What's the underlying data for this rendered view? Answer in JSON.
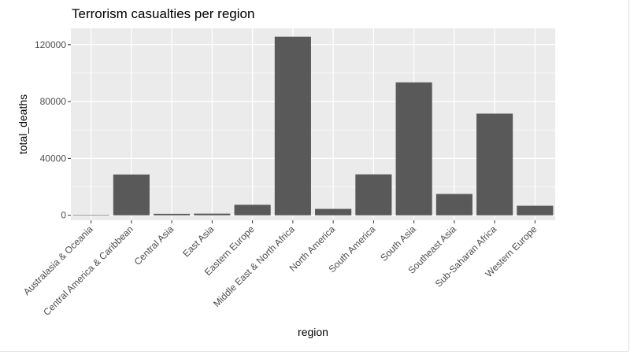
{
  "chart_data": {
    "type": "bar",
    "title": "Terrorism casualties per region",
    "xlabel": "region",
    "ylabel": "total_deaths",
    "categories": [
      "Australasia & Oceania",
      "Central America & Caribbean",
      "Central Asia",
      "East Asia",
      "Eastern Europe",
      "Middle East & North Africa",
      "North America",
      "South America",
      "South Asia",
      "Southeast Asia",
      "Sub-Saharan Africa",
      "Western Europe"
    ],
    "values": [
      150,
      28700,
      1000,
      1150,
      7400,
      125600,
      4500,
      28800,
      93500,
      15000,
      71500,
      6700
    ],
    "ylim": [
      -3500,
      131500
    ],
    "yticks": [
      0,
      40000,
      80000,
      120000
    ],
    "ytick_labels": [
      "0",
      "40000",
      "80000",
      "120000"
    ],
    "grid": true,
    "legend": "none",
    "colors": {
      "bar": "#595959",
      "panel": "#ebebeb",
      "grid_major": "#ffffff",
      "grid_minor": "#f7f7f7",
      "tick_text": "#4d4d4d"
    }
  }
}
